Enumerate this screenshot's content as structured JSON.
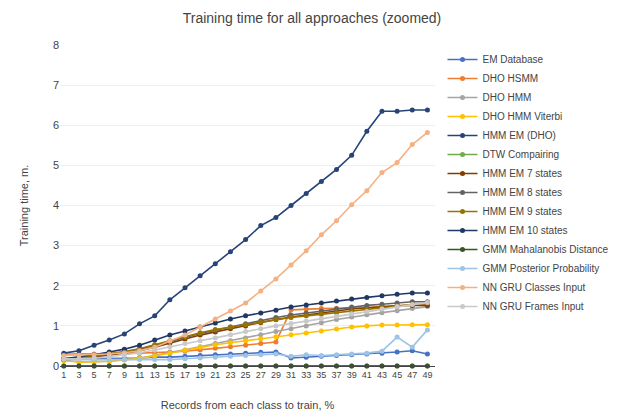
{
  "chart_data": {
    "type": "line",
    "title": "Training time for all approaches (zoomed)",
    "xlabel": "Records from each class to train, %",
    "ylabel": "Training time, m.",
    "xlim": [
      0.5,
      50
    ],
    "ylim": [
      0,
      8
    ],
    "xticks": [
      1,
      3,
      5,
      7,
      9,
      11,
      13,
      15,
      17,
      19,
      21,
      23,
      25,
      27,
      29,
      31,
      33,
      35,
      37,
      39,
      41,
      43,
      45,
      47,
      49
    ],
    "yticks": [
      0,
      1,
      2,
      3,
      4,
      5,
      6,
      7,
      8
    ],
    "grid": true,
    "legend": "right",
    "marker": "circle",
    "x": [
      1,
      3,
      5,
      7,
      9,
      11,
      13,
      15,
      17,
      19,
      21,
      23,
      25,
      27,
      29,
      31,
      33,
      35,
      37,
      39,
      41,
      43,
      45,
      47,
      49
    ],
    "series": [
      {
        "name": "EM Database",
        "color": "#4472C4",
        "values": [
          0.18,
          0.18,
          0.18,
          0.19,
          0.19,
          0.2,
          0.22,
          0.22,
          0.24,
          0.26,
          0.28,
          0.3,
          0.32,
          0.34,
          0.35,
          0.2,
          0.22,
          0.24,
          0.26,
          0.28,
          0.3,
          0.32,
          0.35,
          0.38,
          0.3
        ]
      },
      {
        "name": "DHO HSMM",
        "color": "#ED7D31",
        "values": [
          0.3,
          0.3,
          0.3,
          0.31,
          0.31,
          0.32,
          0.33,
          0.35,
          0.37,
          0.4,
          0.44,
          0.48,
          0.52,
          0.56,
          0.6,
          1.4,
          1.42,
          1.43,
          1.44,
          1.44,
          1.45,
          1.48,
          1.5,
          1.52,
          1.52
        ]
      },
      {
        "name": "DHO HMM",
        "color": "#A5A5A5",
        "values": [
          0.15,
          0.1,
          0.11,
          0.12,
          0.16,
          0.2,
          0.26,
          0.33,
          0.4,
          0.48,
          0.56,
          0.63,
          0.7,
          0.78,
          0.86,
          0.93,
          1.0,
          1.08,
          1.16,
          1.22,
          1.28,
          1.33,
          1.38,
          1.43,
          1.48
        ]
      },
      {
        "name": "DHO HMM Viterbi",
        "color": "#FFC000",
        "values": [
          0.13,
          0.1,
          0.11,
          0.12,
          0.15,
          0.19,
          0.25,
          0.32,
          0.39,
          0.47,
          0.53,
          0.58,
          0.63,
          0.68,
          0.73,
          0.78,
          0.82,
          0.87,
          0.92,
          0.97,
          1.0,
          1.02,
          1.02,
          1.03,
          1.03
        ]
      },
      {
        "name": "HMM EM (DHO)",
        "color": "#264478",
        "values": [
          0.32,
          0.38,
          0.52,
          0.65,
          0.8,
          1.05,
          1.25,
          1.65,
          1.95,
          2.25,
          2.55,
          2.85,
          3.15,
          3.5,
          3.7,
          4.0,
          4.3,
          4.6,
          4.9,
          5.25,
          5.85,
          6.35,
          6.35,
          6.38,
          6.38
        ]
      },
      {
        "name": "DTW Compairing",
        "color": "#70AD47",
        "values": [
          0.0,
          0.0,
          0.0,
          0.0,
          0.0,
          0.0,
          0.0,
          0.0,
          0.0,
          0.0,
          0.0,
          0.0,
          0.0,
          0.0,
          0.0,
          0.0,
          0.0,
          0.0,
          0.0,
          0.0,
          0.0,
          0.0,
          0.0,
          0.0,
          0.0
        ]
      },
      {
        "name": "HMM EM 7 states",
        "color": "#833C00",
        "values": [
          0.16,
          0.18,
          0.22,
          0.27,
          0.32,
          0.38,
          0.47,
          0.57,
          0.67,
          0.77,
          0.85,
          0.93,
          1.0,
          1.08,
          1.16,
          1.22,
          1.27,
          1.32,
          1.37,
          1.42,
          1.45,
          1.48,
          1.5,
          1.51,
          1.51
        ]
      },
      {
        "name": "HMM EM 8 states",
        "color": "#636363",
        "values": [
          0.18,
          0.2,
          0.25,
          0.3,
          0.35,
          0.42,
          0.51,
          0.61,
          0.71,
          0.81,
          0.89,
          0.97,
          1.05,
          1.13,
          1.21,
          1.27,
          1.32,
          1.37,
          1.42,
          1.47,
          1.51,
          1.54,
          1.57,
          1.6,
          1.6
        ]
      },
      {
        "name": "HMM EM 9 states",
        "color": "#997300",
        "values": [
          0.18,
          0.2,
          0.25,
          0.3,
          0.36,
          0.43,
          0.53,
          0.63,
          0.73,
          0.83,
          0.91,
          0.97,
          1.03,
          1.09,
          1.15,
          1.21,
          1.25,
          1.29,
          1.33,
          1.37,
          1.41,
          1.45,
          1.49,
          1.53,
          1.57
        ]
      },
      {
        "name": "HMM EM 10 states",
        "color": "#1F3864",
        "values": [
          0.18,
          0.23,
          0.28,
          0.35,
          0.42,
          0.52,
          0.65,
          0.77,
          0.87,
          0.97,
          1.07,
          1.17,
          1.25,
          1.32,
          1.39,
          1.47,
          1.52,
          1.57,
          1.62,
          1.67,
          1.71,
          1.75,
          1.79,
          1.82,
          1.82
        ]
      },
      {
        "name": "GMM Mahalanobis Distance",
        "color": "#375623",
        "values": [
          0.0,
          0.0,
          0.0,
          0.0,
          0.0,
          0.0,
          0.0,
          0.0,
          0.0,
          0.0,
          0.0,
          0.0,
          0.0,
          0.0,
          0.0,
          0.0,
          0.0,
          0.0,
          0.0,
          0.0,
          0.0,
          0.0,
          0.0,
          0.0,
          0.0
        ]
      },
      {
        "name": "GMM Posterior Probability",
        "color": "#9DC3E6",
        "values": [
          0.16,
          0.16,
          0.16,
          0.16,
          0.16,
          0.16,
          0.16,
          0.16,
          0.18,
          0.2,
          0.22,
          0.24,
          0.26,
          0.28,
          0.3,
          0.24,
          0.28,
          0.26,
          0.28,
          0.3,
          0.32,
          0.37,
          0.72,
          0.47,
          0.9
        ]
      },
      {
        "name": "NN GRU Classes Input",
        "color": "#F4B183",
        "values": [
          0.26,
          0.27,
          0.28,
          0.3,
          0.33,
          0.38,
          0.47,
          0.62,
          0.77,
          0.97,
          1.17,
          1.37,
          1.57,
          1.87,
          2.17,
          2.52,
          2.87,
          3.27,
          3.62,
          4.02,
          4.37,
          4.82,
          5.07,
          5.52,
          5.82
        ]
      },
      {
        "name": "NN GRU Frames Input",
        "color": "#C9C9C9",
        "values": [
          0.18,
          0.18,
          0.2,
          0.23,
          0.28,
          0.33,
          0.4,
          0.48,
          0.56,
          0.63,
          0.7,
          0.78,
          0.86,
          0.93,
          1.0,
          1.06,
          1.12,
          1.18,
          1.24,
          1.3,
          1.36,
          1.42,
          1.48,
          1.53,
          1.58
        ]
      }
    ]
  }
}
